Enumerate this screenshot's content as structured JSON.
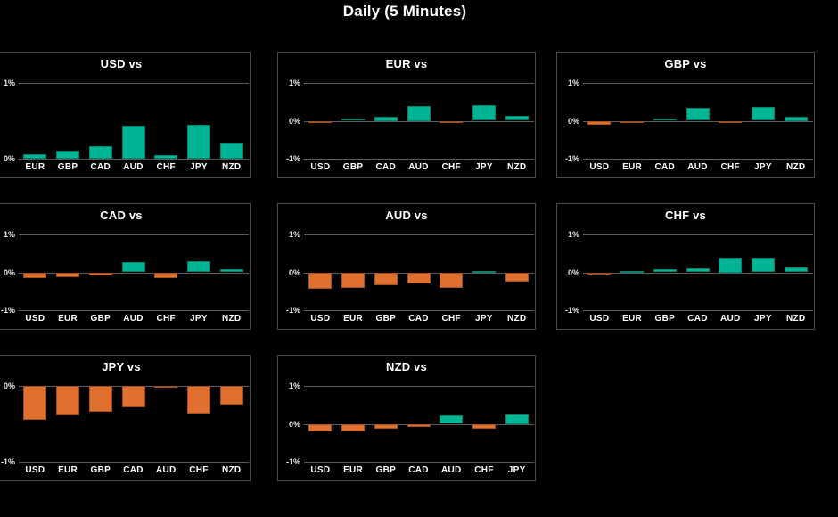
{
  "page": {
    "title": "Daily (5 Minutes)"
  },
  "colors": {
    "background": "#000000",
    "panel_border": "#4a4a4a",
    "grid_line": "#5c5c5c",
    "tick_text": "#e8e8e8",
    "title_text": "#ffffff",
    "positive": "#00b496",
    "negative": "#e0702d"
  },
  "chart_data": [
    {
      "type": "bar",
      "title": "USD vs",
      "categories": [
        "EUR",
        "GBP",
        "CAD",
        "AUD",
        "CHF",
        "JPY",
        "NZD"
      ],
      "values": [
        0.06,
        0.11,
        0.16,
        0.44,
        0.05,
        0.45,
        0.21
      ],
      "ylim": [
        0,
        1
      ],
      "yticks": [
        "1%",
        "0%"
      ],
      "grid": true,
      "legend": false
    },
    {
      "type": "bar",
      "title": "EUR vs",
      "categories": [
        "USD",
        "GBP",
        "CAD",
        "AUD",
        "CHF",
        "JPY",
        "NZD"
      ],
      "values": [
        -0.06,
        0.06,
        0.1,
        0.4,
        -0.02,
        0.42,
        0.14
      ],
      "ylim": [
        -1,
        1
      ],
      "yticks": [
        "1%",
        "0%",
        "-1%"
      ],
      "grid": true,
      "legend": false
    },
    {
      "type": "bar",
      "title": "GBP vs",
      "categories": [
        "USD",
        "EUR",
        "CAD",
        "AUD",
        "CHF",
        "JPY",
        "NZD"
      ],
      "values": [
        -0.11,
        -0.06,
        0.07,
        0.34,
        -0.07,
        0.37,
        0.1
      ],
      "ylim": [
        -1,
        1
      ],
      "yticks": [
        "1%",
        "0%",
        "-1%"
      ],
      "grid": true,
      "legend": false
    },
    {
      "type": "bar",
      "title": "CAD vs",
      "categories": [
        "USD",
        "EUR",
        "GBP",
        "AUD",
        "CHF",
        "JPY",
        "NZD"
      ],
      "values": [
        -0.16,
        -0.13,
        -0.08,
        0.28,
        -0.15,
        0.29,
        0.08
      ],
      "ylim": [
        -1,
        1
      ],
      "yticks": [
        "1%",
        "0%",
        "-1%"
      ],
      "grid": true,
      "legend": false
    },
    {
      "type": "bar",
      "title": "AUD vs",
      "categories": [
        "USD",
        "EUR",
        "GBP",
        "CAD",
        "CHF",
        "JPY",
        "NZD"
      ],
      "values": [
        -0.44,
        -0.4,
        -0.34,
        -0.29,
        -0.42,
        0.01,
        -0.25
      ],
      "ylim": [
        -1,
        1
      ],
      "yticks": [
        "1%",
        "0%",
        "-1%"
      ],
      "grid": true,
      "legend": false
    },
    {
      "type": "bar",
      "title": "CHF vs",
      "categories": [
        "USD",
        "EUR",
        "GBP",
        "CAD",
        "AUD",
        "JPY",
        "NZD"
      ],
      "values": [
        -0.05,
        0.02,
        0.08,
        0.11,
        0.4,
        0.38,
        0.12
      ],
      "ylim": [
        -1,
        1
      ],
      "yticks": [
        "1%",
        "0%",
        "-1%"
      ],
      "grid": true,
      "legend": false
    },
    {
      "type": "bar",
      "title": "JPY vs",
      "categories": [
        "USD",
        "EUR",
        "GBP",
        "CAD",
        "AUD",
        "CHF",
        "NZD"
      ],
      "values": [
        -0.45,
        -0.39,
        -0.34,
        -0.28,
        -0.01,
        -0.37,
        -0.25
      ],
      "ylim": [
        -1,
        0
      ],
      "yticks": [
        "0%",
        "-1%"
      ],
      "grid": true,
      "legend": false
    },
    {
      "type": "bar",
      "title": "NZD vs",
      "categories": [
        "USD",
        "EUR",
        "GBP",
        "CAD",
        "AUD",
        "CHF",
        "JPY"
      ],
      "values": [
        -0.21,
        -0.19,
        -0.13,
        -0.08,
        0.22,
        -0.14,
        0.25
      ],
      "ylim": [
        -1,
        1
      ],
      "yticks": [
        "1%",
        "0%",
        "-1%"
      ],
      "grid": true,
      "legend": false
    }
  ]
}
